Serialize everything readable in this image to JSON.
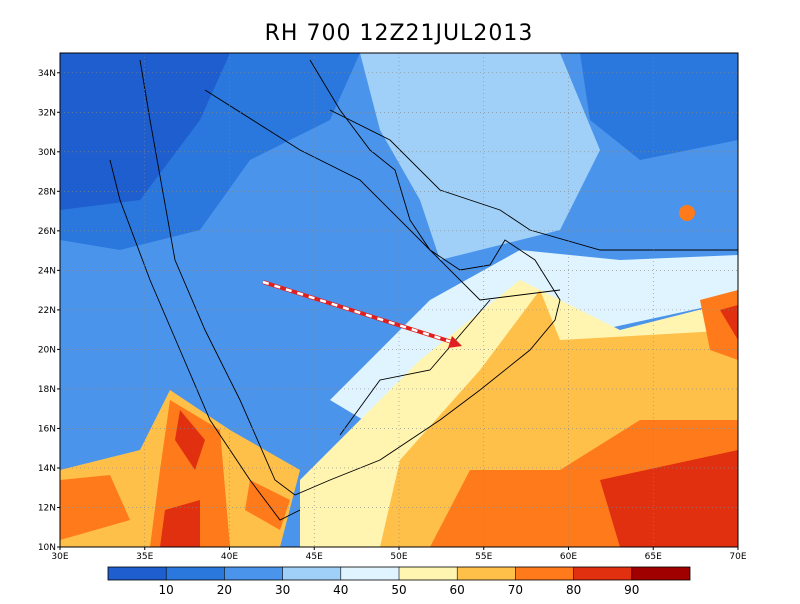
{
  "title": "RH 700  12Z21JUL2013",
  "map": {
    "lon_range": [
      30,
      70
    ],
    "lat_range": [
      10,
      35
    ],
    "lon_ticks": [
      {
        "value": 30,
        "label": "30E"
      },
      {
        "value": 35,
        "label": "35E"
      },
      {
        "value": 40,
        "label": "40E"
      },
      {
        "value": 45,
        "label": "45E"
      },
      {
        "value": 50,
        "label": "50E"
      },
      {
        "value": 55,
        "label": "55E"
      },
      {
        "value": 60,
        "label": "60E"
      },
      {
        "value": 65,
        "label": "65E"
      },
      {
        "value": 70,
        "label": "70E"
      }
    ],
    "lat_ticks": [
      {
        "value": 10,
        "label": "10N"
      },
      {
        "value": 12,
        "label": "12N"
      },
      {
        "value": 14,
        "label": "14N"
      },
      {
        "value": 16,
        "label": "16N"
      },
      {
        "value": 18,
        "label": "18N"
      },
      {
        "value": 20,
        "label": "20N"
      },
      {
        "value": 22,
        "label": "22N"
      },
      {
        "value": 24,
        "label": "24N"
      },
      {
        "value": 26,
        "label": "26N"
      },
      {
        "value": 28,
        "label": "28N"
      },
      {
        "value": 30,
        "label": "30N"
      },
      {
        "value": 32,
        "label": "32N"
      },
      {
        "value": 34,
        "label": "34N"
      }
    ]
  },
  "colorbar": {
    "levels": [
      10,
      20,
      30,
      40,
      50,
      60,
      70,
      80,
      90
    ],
    "colors": [
      "#1e5ecf",
      "#2a78dd",
      "#4a94ec",
      "#a0d0f8",
      "#e0f4ff",
      "#fff5b0",
      "#ffc04a",
      "#ff7a1a",
      "#e03010",
      "#a00000"
    ]
  }
}
